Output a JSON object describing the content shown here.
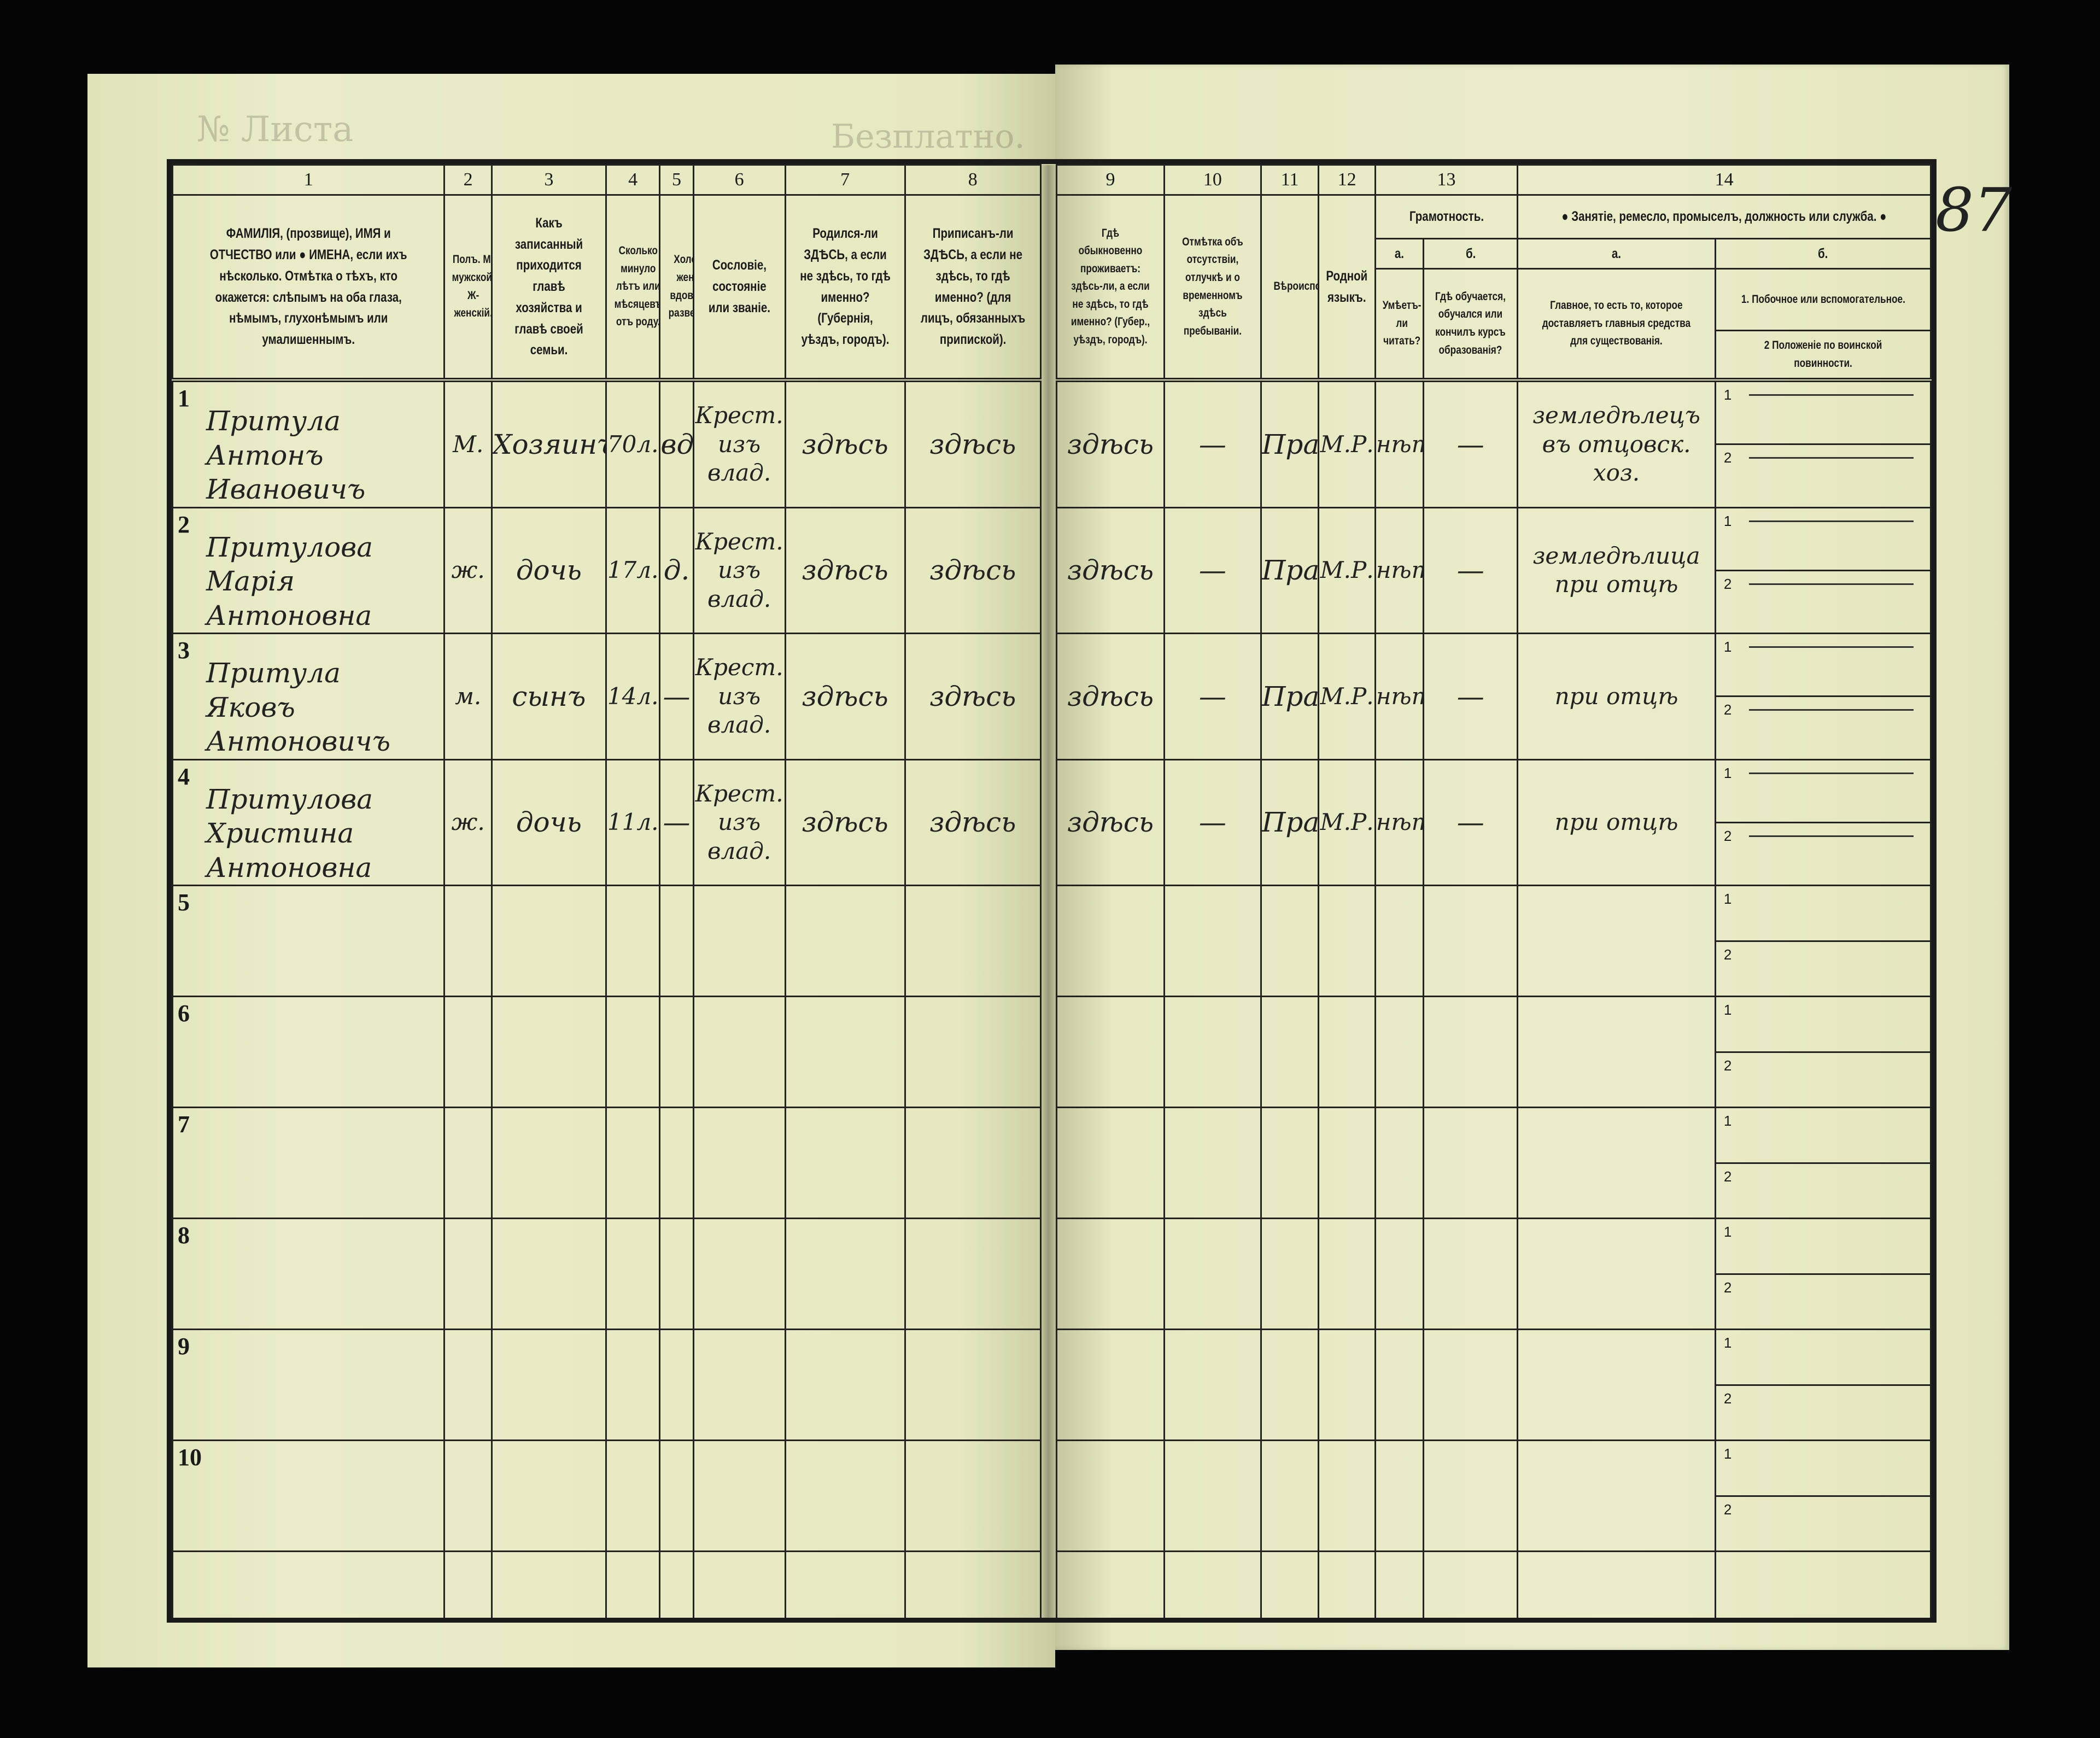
{
  "page_number": "87",
  "faint": {
    "blank_word": "Безплатно.",
    "sheet_no": "№ Листа"
  },
  "header": {
    "col_numbers": [
      "1",
      "2",
      "3",
      "4",
      "5",
      "6",
      "7",
      "8",
      "9",
      "10",
      "11",
      "12",
      "13",
      "14"
    ],
    "c1": "ФАМИЛІЯ, (прозвище), ИМЯ и ОТЧЕСТВО или ● ИМЕНА, если ихъ нѣсколько. Отмѣтка о тѣхъ, кто окажется: слѣпымъ на оба глаза, нѣмымъ, глухонѣмымъ или умалишеннымъ.",
    "c2": "Полъ. М-мужской. Ж-женскій.",
    "c3": "Какъ записанный приходится главѣ хозяйства и главѣ своей семьи.",
    "c4": "Сколько минуло лѣтъ или мѣсяцевъ отъ роду.",
    "c5": "Холостъ, женатъ, вдовъ или разведенъ.",
    "c6": "Сословіе, состояніе или званіе.",
    "c7": "Родился-ли ЗДѢСЬ, а если не здѣсь, то гдѣ именно? (Губернія, уѣздъ, городъ).",
    "c8": "Приписанъ-ли ЗДѢСЬ, а если не здѣсь, то гдѣ именно? (для лицъ, обязанныхъ припиской).",
    "c9": "Гдѣ обыкновенно проживаетъ: здѣсь-ли, а если не здѣсь, то гдѣ именно? (Губер., уѣздъ, городъ).",
    "c10": "Отмѣтка объ отсутствіи, отлучкѣ и о временномъ здѣсь пребываніи.",
    "c11": "Вѣроисповѣданіе.",
    "c12": "Родной языкъ.",
    "c13_title": "Грамотность.",
    "c13a_letter": "а.",
    "c13b_letter": "б.",
    "c13a": "Умѣетъ-ли читать?",
    "c13b": "Гдѣ обучается, обучался или кончилъ курсъ образованія?",
    "c14_title": "● Занятіе, ремесло, промыселъ, должность или служба. ●",
    "c14a_letter": "а.",
    "c14b_letter": "б.",
    "c14a": "Главное, то есть то, которое доставляетъ главныя средства для существованія.",
    "c14b_1": "1. Побочное или вспомогательное.",
    "c14b_2": "2 Положеніе по воинской повинности."
  },
  "rows": [
    {
      "n": "1",
      "name": "Притула Антонъ Ивановичъ",
      "sex": "М.",
      "relation": "Хозяинъ",
      "age": "70л.",
      "marital": "вд.",
      "estate": "Крест. изъ влад.",
      "born": "здѣсь",
      "registered": "здѣсь",
      "residence": "здѣсь",
      "absence": "—",
      "religion": "Прав.",
      "language": "М.Р.",
      "literate": "нѣтъ",
      "education": "—",
      "occupation": "земледѣлецъ въ отцовск. хоз.",
      "sub1": "1",
      "sub2": "2",
      "filled": true
    },
    {
      "n": "2",
      "name": "Притулова Марія Антоновна",
      "sex": "ж.",
      "relation": "дочь",
      "age": "17л.",
      "marital": "д.",
      "estate": "Крест. изъ влад.",
      "born": "здѣсь",
      "registered": "здѣсь",
      "residence": "здѣсь",
      "absence": "—",
      "religion": "Прав.",
      "language": "М.Р.",
      "literate": "нѣтъ",
      "education": "—",
      "occupation": "земледѣлица при отцѣ",
      "sub1": "1",
      "sub2": "2",
      "filled": true
    },
    {
      "n": "3",
      "name": "Притула Яковъ Антоновичъ",
      "sex": "м.",
      "relation": "сынъ",
      "age": "14л.",
      "marital": "—",
      "estate": "Крест. изъ влад.",
      "born": "здѣсь",
      "registered": "здѣсь",
      "residence": "здѣсь",
      "absence": "—",
      "religion": "Прав.",
      "language": "М.Р.",
      "literate": "нѣтъ",
      "education": "—",
      "occupation": "при отцѣ",
      "sub1": "1",
      "sub2": "2",
      "filled": true
    },
    {
      "n": "4",
      "name": "Притулова Христина Антоновна",
      "sex": "ж.",
      "relation": "дочь",
      "age": "11л.",
      "marital": "—",
      "estate": "Крест. изъ влад.",
      "born": "здѣсь",
      "registered": "здѣсь",
      "residence": "здѣсь",
      "absence": "—",
      "religion": "Прав.",
      "language": "М.Р.",
      "literate": "нѣтъ",
      "education": "—",
      "occupation": "при отцѣ",
      "sub1": "1",
      "sub2": "2",
      "filled": true
    },
    {
      "n": "5",
      "sub1": "1",
      "sub2": "2"
    },
    {
      "n": "6",
      "sub1": "1",
      "sub2": "2"
    },
    {
      "n": "7",
      "sub1": "1",
      "sub2": "2"
    },
    {
      "n": "8",
      "sub1": "1",
      "sub2": "2"
    },
    {
      "n": "9",
      "sub1": "1",
      "sub2": "2"
    },
    {
      "n": "10",
      "sub1": "1",
      "sub2": "2"
    }
  ]
}
